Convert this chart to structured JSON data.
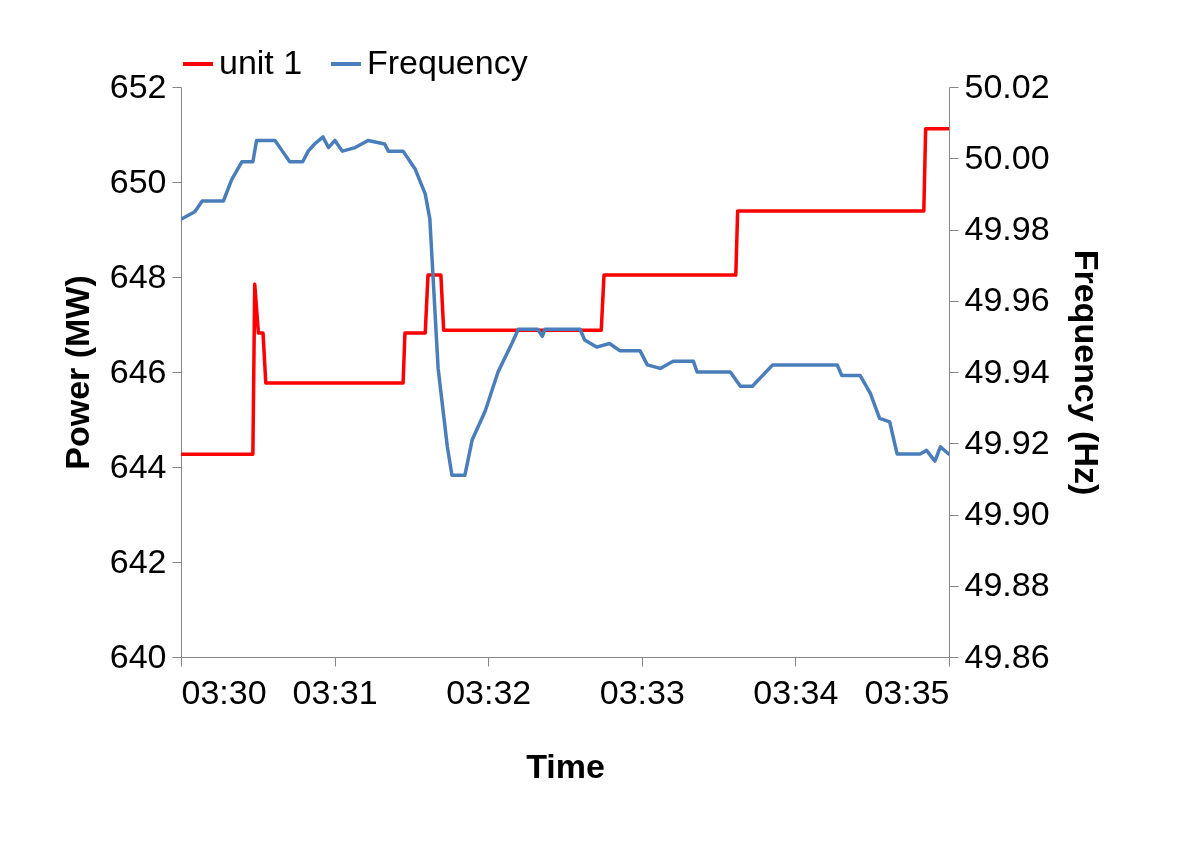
{
  "chart_data": {
    "type": "line",
    "xlabel": "Time",
    "ylabel": "Power (MW)",
    "y2label": "Frequency (Hz)",
    "legend": "top",
    "xlim": [
      3.5,
      3.583333
    ],
    "xticks": [
      {
        "value": 3.5,
        "label": "03:30"
      },
      {
        "value": 3.516667,
        "label": "03:31"
      },
      {
        "value": 3.533333,
        "label": "03:32"
      },
      {
        "value": 3.55,
        "label": "03:33"
      },
      {
        "value": 3.566667,
        "label": "03:34"
      },
      {
        "value": 3.583333,
        "label": "03:35"
      }
    ],
    "ylim": [
      640,
      652
    ],
    "yticks": [
      640,
      642,
      644,
      646,
      648,
      650,
      652
    ],
    "y2lim": [
      49.86,
      50.02
    ],
    "y2ticks": [
      {
        "value": 49.86,
        "label": "49.86"
      },
      {
        "value": 49.88,
        "label": "49.88"
      },
      {
        "value": 49.9,
        "label": "49.90"
      },
      {
        "value": 49.92,
        "label": "49.92"
      },
      {
        "value": 49.94,
        "label": "49.94"
      },
      {
        "value": 49.96,
        "label": "49.96"
      },
      {
        "value": 49.98,
        "label": "49.98"
      },
      {
        "value": 50.0,
        "label": "50.00"
      },
      {
        "value": 50.02,
        "label": "50.02"
      }
    ],
    "series": [
      {
        "name": "unit 1",
        "color": "#ff0000",
        "x": [
          3.5,
          3.5078,
          3.508,
          3.5084,
          3.5089,
          3.5092,
          3.5241,
          3.5243,
          3.5265,
          3.5268,
          3.5282,
          3.5285,
          3.5456,
          3.5459,
          3.5602,
          3.5604,
          3.5806,
          3.5808,
          3.5833
        ],
        "values": [
          644.27,
          644.27,
          647.85,
          646.82,
          646.82,
          645.77,
          645.77,
          646.82,
          646.82,
          648.04,
          648.04,
          646.88,
          646.88,
          648.04,
          648.04,
          649.39,
          649.39,
          651.12,
          651.12
        ]
      },
      {
        "name": "Frequency",
        "color": "#4a7ebb",
        "axis": "y2",
        "x": [
          3.5001,
          3.5015,
          3.5023,
          3.5046,
          3.5055,
          3.5066,
          3.5078,
          3.5082,
          3.5093,
          3.5102,
          3.511,
          3.5118,
          3.5132,
          3.5138,
          3.5145,
          3.5154,
          3.516,
          3.5167,
          3.5175,
          3.5189,
          3.5203,
          3.5221,
          3.5225,
          3.5241,
          3.5254,
          3.5265,
          3.527,
          3.5279,
          3.5289,
          3.5294,
          3.5308,
          3.5316,
          3.533,
          3.5344,
          3.5359,
          3.5366,
          3.5387,
          3.5392,
          3.5395,
          3.5433,
          3.5438,
          3.5451,
          3.5465,
          3.5476,
          3.5498,
          3.5506,
          3.552,
          3.5534,
          3.5556,
          3.556,
          3.5596,
          3.5607,
          3.562,
          3.5642,
          3.5712,
          3.5717,
          3.5737,
          3.5748,
          3.5758,
          3.5769,
          3.5777,
          3.5802,
          3.5809,
          3.5818,
          3.5824,
          3.5833
        ],
        "values": [
          49.983,
          49.985,
          49.988,
          49.988,
          49.994,
          49.999,
          49.999,
          50.005,
          50.005,
          50.005,
          50.002,
          49.999,
          49.999,
          50.002,
          50.004,
          50.006,
          50.003,
          50.005,
          50.002,
          50.003,
          50.005,
          50.004,
          50.002,
          50.002,
          49.997,
          49.99,
          49.983,
          49.941,
          49.919,
          49.911,
          49.911,
          49.921,
          49.929,
          49.94,
          49.948,
          49.952,
          49.952,
          49.95,
          49.952,
          49.952,
          49.949,
          49.947,
          49.948,
          49.946,
          49.946,
          49.942,
          49.941,
          49.943,
          49.943,
          49.94,
          49.94,
          49.936,
          49.936,
          49.942,
          49.942,
          49.939,
          49.939,
          49.934,
          49.927,
          49.926,
          49.917,
          49.917,
          49.918,
          49.915,
          49.919,
          49.917
        ]
      }
    ]
  }
}
